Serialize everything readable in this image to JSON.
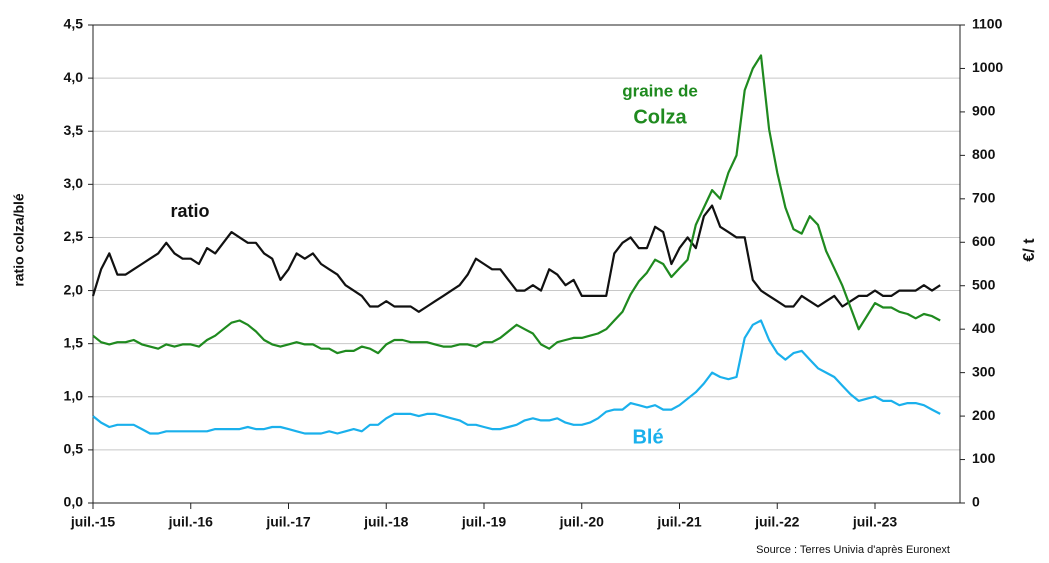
{
  "chart_data": {
    "type": "line",
    "y_label": "ratio colza/blé",
    "y2_label": "€/ t",
    "source": "Source : Terres Univia d'après Euronext",
    "annotations": [
      "graine de"
    ],
    "x": [
      "2015-07",
      "2015-08",
      "2015-09",
      "2015-10",
      "2015-11",
      "2015-12",
      "2016-01",
      "2016-02",
      "2016-03",
      "2016-04",
      "2016-05",
      "2016-06",
      "2016-07",
      "2016-08",
      "2016-09",
      "2016-10",
      "2016-11",
      "2016-12",
      "2017-01",
      "2017-02",
      "2017-03",
      "2017-04",
      "2017-05",
      "2017-06",
      "2017-07",
      "2017-08",
      "2017-09",
      "2017-10",
      "2017-11",
      "2017-12",
      "2018-01",
      "2018-02",
      "2018-03",
      "2018-04",
      "2018-05",
      "2018-06",
      "2018-07",
      "2018-08",
      "2018-09",
      "2018-10",
      "2018-11",
      "2018-12",
      "2019-01",
      "2019-02",
      "2019-03",
      "2019-04",
      "2019-05",
      "2019-06",
      "2019-07",
      "2019-08",
      "2019-09",
      "2019-10",
      "2019-11",
      "2019-12",
      "2020-01",
      "2020-02",
      "2020-03",
      "2020-04",
      "2020-05",
      "2020-06",
      "2020-07",
      "2020-08",
      "2020-09",
      "2020-10",
      "2020-11",
      "2020-12",
      "2021-01",
      "2021-02",
      "2021-03",
      "2021-04",
      "2021-05",
      "2021-06",
      "2021-07",
      "2021-08",
      "2021-09",
      "2021-10",
      "2021-11",
      "2021-12",
      "2022-01",
      "2022-02",
      "2022-03",
      "2022-04",
      "2022-05",
      "2022-06",
      "2022-07",
      "2022-08",
      "2022-09",
      "2022-10",
      "2022-11",
      "2022-12",
      "2023-01",
      "2023-02",
      "2023-03",
      "2023-04",
      "2023-05",
      "2023-06",
      "2023-07",
      "2023-08",
      "2023-09",
      "2023-10",
      "2023-11",
      "2023-12",
      "2024-01",
      "2024-02",
      "2024-03"
    ],
    "series": [
      {
        "name": "ratio",
        "color": "#111111",
        "values": [
          1.95,
          2.2,
          2.35,
          2.15,
          2.15,
          2.2,
          2.25,
          2.3,
          2.35,
          2.45,
          2.35,
          2.3,
          2.3,
          2.25,
          2.4,
          2.35,
          2.45,
          2.55,
          2.5,
          2.45,
          2.45,
          2.35,
          2.3,
          2.1,
          2.2,
          2.35,
          2.3,
          2.35,
          2.25,
          2.2,
          2.15,
          2.05,
          2.0,
          1.95,
          1.85,
          1.85,
          1.9,
          1.85,
          1.85,
          1.85,
          1.8,
          1.85,
          1.9,
          1.95,
          2.0,
          2.05,
          2.15,
          2.3,
          2.25,
          2.2,
          2.2,
          2.1,
          2.0,
          2.0,
          2.05,
          2.0,
          2.2,
          2.15,
          2.05,
          2.1,
          1.95,
          1.95,
          1.95,
          1.95,
          2.35,
          2.45,
          2.5,
          2.4,
          2.4,
          2.6,
          2.55,
          2.25,
          2.4,
          2.5,
          2.4,
          2.7,
          2.8,
          2.6,
          2.55,
          2.5,
          2.5,
          2.1,
          2.0,
          1.95,
          1.9,
          1.85,
          1.85,
          1.95,
          1.9,
          1.85,
          1.9,
          1.95,
          1.85,
          1.9,
          1.95,
          1.95,
          2.0,
          1.95,
          1.95,
          2.0,
          2.0,
          2.0,
          2.05,
          2.0,
          2.05
        ]
      },
      {
        "name": "Colza",
        "color": "#1f8a1f",
        "axis": "y2",
        "values": [
          385,
          370,
          365,
          370,
          370,
          375,
          365,
          360,
          355,
          365,
          360,
          365,
          365,
          360,
          375,
          385,
          400,
          415,
          420,
          410,
          395,
          375,
          365,
          360,
          365,
          370,
          365,
          365,
          355,
          355,
          345,
          350,
          350,
          360,
          355,
          345,
          365,
          375,
          375,
          370,
          370,
          370,
          365,
          360,
          360,
          365,
          365,
          360,
          370,
          370,
          380,
          395,
          410,
          400,
          390,
          365,
          355,
          370,
          375,
          380,
          380,
          385,
          390,
          400,
          420,
          440,
          480,
          510,
          530,
          560,
          550,
          520,
          540,
          560,
          640,
          680,
          720,
          700,
          760,
          800,
          950,
          1000,
          1030,
          860,
          760,
          680,
          630,
          620,
          660,
          640,
          580,
          540,
          500,
          450,
          400,
          430,
          460,
          450,
          450,
          440,
          435,
          425,
          435,
          430,
          420
        ]
      },
      {
        "name": "Blé",
        "color": "#1ab0ec",
        "axis": "y2",
        "values": [
          200,
          185,
          175,
          180,
          180,
          180,
          170,
          160,
          160,
          165,
          165,
          165,
          165,
          165,
          165,
          170,
          170,
          170,
          170,
          175,
          170,
          170,
          175,
          175,
          170,
          165,
          160,
          160,
          160,
          165,
          160,
          165,
          170,
          165,
          180,
          180,
          195,
          205,
          205,
          205,
          200,
          205,
          205,
          200,
          195,
          190,
          180,
          180,
          175,
          170,
          170,
          175,
          180,
          190,
          195,
          190,
          190,
          195,
          185,
          180,
          180,
          185,
          195,
          210,
          215,
          215,
          230,
          225,
          220,
          225,
          215,
          215,
          225,
          240,
          255,
          275,
          300,
          290,
          285,
          290,
          380,
          410,
          420,
          375,
          345,
          330,
          345,
          350,
          330,
          310,
          300,
          290,
          270,
          250,
          235,
          240,
          245,
          235,
          235,
          225,
          230,
          230,
          225,
          215,
          205
        ]
      }
    ],
    "xticks": [
      {
        "value": "2015-07",
        "label": "juil.-15"
      },
      {
        "value": "2016-07",
        "label": "juil.-16"
      },
      {
        "value": "2017-07",
        "label": "juil.-17"
      },
      {
        "value": "2018-07",
        "label": "juil.-18"
      },
      {
        "value": "2019-07",
        "label": "juil.-19"
      },
      {
        "value": "2020-07",
        "label": "juil.-20"
      },
      {
        "value": "2021-07",
        "label": "juil.-21"
      },
      {
        "value": "2022-07",
        "label": "juil.-22"
      },
      {
        "value": "2023-07",
        "label": "juil.-23"
      }
    ],
    "ylim": [
      0,
      4.5
    ],
    "yticks": [
      {
        "value": 0,
        "label": "0,0"
      },
      {
        "value": 0.5,
        "label": "0,5"
      },
      {
        "value": 1,
        "label": "1,0"
      },
      {
        "value": 1.5,
        "label": "1,5"
      },
      {
        "value": 2,
        "label": "2,0"
      },
      {
        "value": 2.5,
        "label": "2,5"
      },
      {
        "value": 3,
        "label": "3,0"
      },
      {
        "value": 3.5,
        "label": "3,5"
      },
      {
        "value": 4,
        "label": "4,0"
      },
      {
        "value": 4.5,
        "label": "4,5"
      }
    ],
    "y2lim": [
      0,
      1100
    ],
    "y2ticks": [
      0,
      100,
      200,
      300,
      400,
      500,
      600,
      700,
      800,
      900,
      1000,
      1100
    ],
    "grid": true
  }
}
